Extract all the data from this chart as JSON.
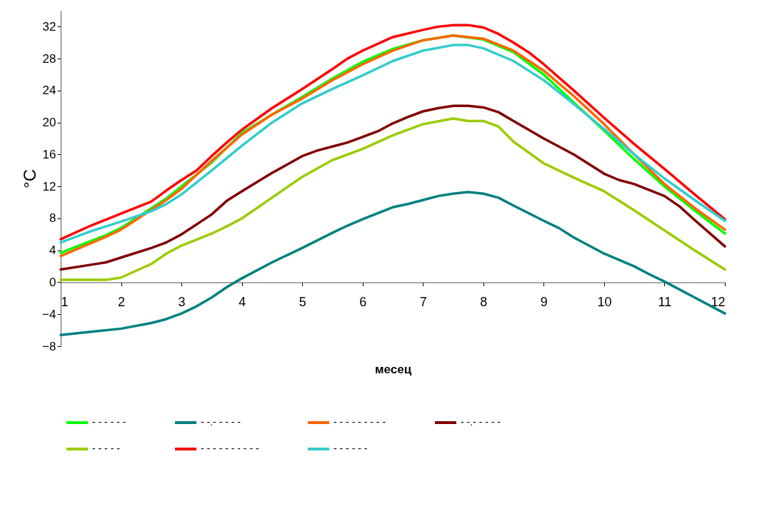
{
  "chart_data": {
    "type": "line",
    "xlabel": "месец",
    "ylabel": "°C",
    "xlim": [
      1,
      12
    ],
    "ylim": [
      -8,
      34
    ],
    "xticks": [
      1,
      2,
      3,
      4,
      5,
      6,
      7,
      8,
      9,
      10,
      11,
      12
    ],
    "yticks": [
      -8,
      -4,
      0,
      4,
      8,
      12,
      16,
      20,
      24,
      28,
      32
    ],
    "grid": false,
    "legend": "bottom",
    "marker": "none",
    "line_style": "solid",
    "series": [
      {
        "name": "- - - - - -",
        "color": "#00ff00",
        "x": [
          1,
          1.75,
          2,
          2.75,
          3,
          3.5,
          4,
          4.5,
          5,
          5.5,
          6,
          6.5,
          7,
          7.5,
          8,
          8.5,
          9,
          9.5,
          10,
          10.5,
          11,
          11.5,
          12
        ],
        "values": [
          3.7,
          5.9,
          6.8,
          10.5,
          12,
          15,
          18.7,
          21,
          23.2,
          25.5,
          27.6,
          29.2,
          30.3,
          30.9,
          30.4,
          28.8,
          26,
          22.5,
          19,
          15.4,
          12,
          9,
          6.1
        ]
      },
      {
        "name": "- -.- - - - -",
        "color": "#008080",
        "x": [
          1,
          1.5,
          2,
          2.5,
          2.75,
          3,
          3.25,
          3.5,
          3.75,
          4,
          4.5,
          5,
          5.5,
          5.75,
          6,
          6.5,
          6.75,
          7,
          7.25,
          7.5,
          7.75,
          8,
          8.25,
          8.5,
          9,
          9.25,
          9.5,
          10,
          10.5,
          10.75,
          11,
          11.5,
          12
        ],
        "values": [
          -6.6,
          -6.2,
          -5.8,
          -5.1,
          -4.6,
          -3.9,
          -3,
          -1.9,
          -0.6,
          0.5,
          2.5,
          4.3,
          6.2,
          7.1,
          7.9,
          9.4,
          9.8,
          10.3,
          10.8,
          11.1,
          11.3,
          11.1,
          10.6,
          9.6,
          7.7,
          6.8,
          5.6,
          3.6,
          2,
          1,
          0.1,
          -1.9,
          -3.9
        ]
      },
      {
        "name": "- - - - - - - - -",
        "color": "#ff6600",
        "x": [
          1,
          1.75,
          2,
          2.75,
          3,
          3.5,
          4,
          4.5,
          5,
          5.5,
          6,
          6.5,
          7,
          7.5,
          8,
          8.5,
          9,
          9.5,
          10,
          10.5,
          11,
          11.5,
          12
        ],
        "values": [
          3.3,
          5.7,
          6.6,
          10.3,
          11.7,
          15.2,
          18.5,
          21,
          23,
          25.3,
          27.3,
          29,
          30.3,
          30.9,
          30.5,
          29,
          26.5,
          23.3,
          19.8,
          16,
          12.3,
          9.3,
          6.6
        ]
      },
      {
        "name": "- -.- - - - -",
        "color": "#800000",
        "x": [
          1,
          1.5,
          1.75,
          2,
          2.5,
          2.75,
          3,
          3.5,
          3.75,
          4,
          4.5,
          5,
          5.25,
          5.5,
          5.75,
          6,
          6.25,
          6.5,
          6.75,
          7,
          7.25,
          7.5,
          7.75,
          8,
          8.25,
          8.5,
          9,
          9.5,
          10,
          10.25,
          10.5,
          11,
          11.25,
          11.5,
          12
        ],
        "values": [
          1.6,
          2.2,
          2.5,
          3.1,
          4.3,
          5,
          6,
          8.5,
          10.2,
          11.4,
          13.7,
          15.8,
          16.5,
          17,
          17.5,
          18.2,
          18.9,
          19.9,
          20.7,
          21.4,
          21.8,
          22.1,
          22.1,
          21.9,
          21.3,
          20.2,
          18,
          16,
          13.6,
          12.8,
          12.3,
          10.8,
          9.5,
          7.8,
          4.5
        ]
      },
      {
        "name": "- - - - -",
        "color": "#99cc00",
        "x": [
          1,
          1.75,
          2,
          2.5,
          2.75,
          3,
          3.5,
          3.75,
          4,
          4.5,
          5,
          5.5,
          6,
          6.5,
          7,
          7.5,
          7.75,
          8,
          8.25,
          8.5,
          9,
          9.5,
          10,
          10.5,
          11,
          11.5,
          12
        ],
        "values": [
          0.3,
          0.3,
          0.6,
          2.3,
          3.6,
          4.6,
          6.1,
          7,
          8,
          10.6,
          13.2,
          15.3,
          16.7,
          18.4,
          19.8,
          20.5,
          20.2,
          20.2,
          19.5,
          17.6,
          14.9,
          13.1,
          11.4,
          9,
          6.5,
          4,
          1.6
        ]
      },
      {
        "name": "- - - - - - - - - -",
        "color": "#ff0000",
        "x": [
          1,
          1.5,
          2,
          2.5,
          2.75,
          3,
          3.25,
          3.5,
          3.75,
          4,
          4.5,
          5,
          5.5,
          5.75,
          6,
          6.5,
          7,
          7.25,
          7.5,
          7.75,
          8,
          8.25,
          8.5,
          8.75,
          9,
          9.5,
          10,
          10.5,
          11,
          11.5,
          12
        ],
        "values": [
          5.4,
          7.1,
          8.6,
          10.1,
          11.5,
          12.8,
          14,
          15.8,
          17.5,
          19.1,
          21.8,
          24.2,
          26.7,
          28,
          29,
          30.7,
          31.6,
          32,
          32.2,
          32.2,
          31.9,
          31.1,
          30,
          28.8,
          27.3,
          24,
          20.6,
          17.3,
          14.2,
          11,
          7.9
        ]
      },
      {
        "name": "- - - - - -",
        "color": "#33cccc",
        "x": [
          1,
          1.5,
          2,
          2.5,
          2.75,
          3,
          3.5,
          4,
          4.5,
          5,
          5.5,
          6,
          6.5,
          7,
          7.5,
          7.75,
          8,
          8.5,
          9,
          9.5,
          10,
          10.5,
          11,
          11.5,
          12
        ],
        "values": [
          5,
          6.4,
          7.6,
          8.9,
          9.8,
          11,
          14,
          17.1,
          20,
          22.4,
          24.2,
          25.9,
          27.7,
          29,
          29.7,
          29.7,
          29.3,
          27.7,
          25.3,
          22.3,
          19.2,
          16,
          13,
          10.3,
          7.7
        ]
      }
    ]
  }
}
